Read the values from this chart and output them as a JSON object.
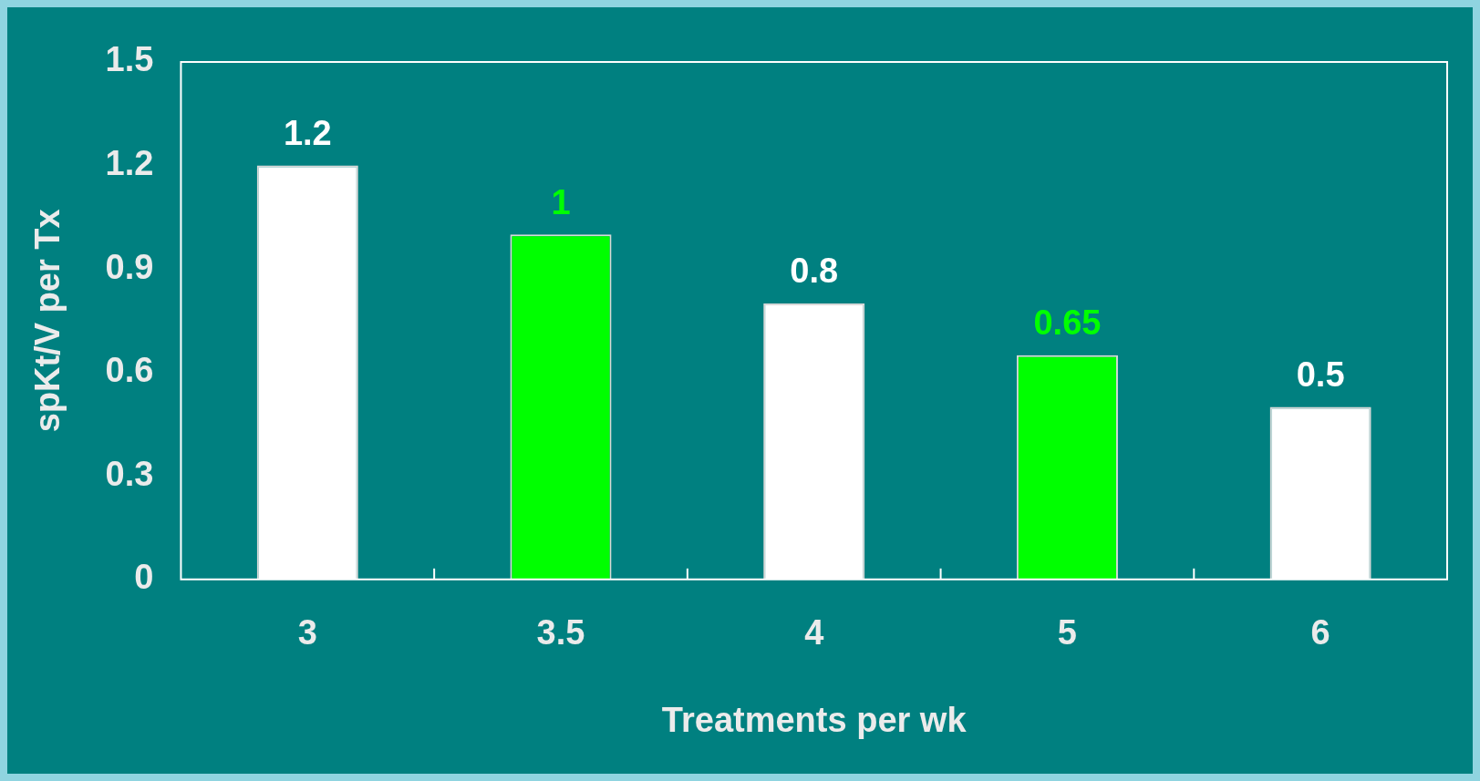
{
  "chart_data": {
    "type": "bar",
    "xlabel": "Treatments per wk",
    "ylabel": "spKt/V per Tx",
    "categories": [
      "3",
      "3.5",
      "4",
      "5",
      "6"
    ],
    "values": [
      1.2,
      1,
      0.8,
      0.65,
      0.5
    ],
    "colors": [
      "#ffffff",
      "#00ff00",
      "#ffffff",
      "#00ff00",
      "#ffffff"
    ],
    "ylim": [
      0,
      1.5
    ],
    "yticks": [
      0,
      0.3,
      0.6,
      0.9,
      1.2,
      1.5
    ],
    "data_labels": true
  }
}
